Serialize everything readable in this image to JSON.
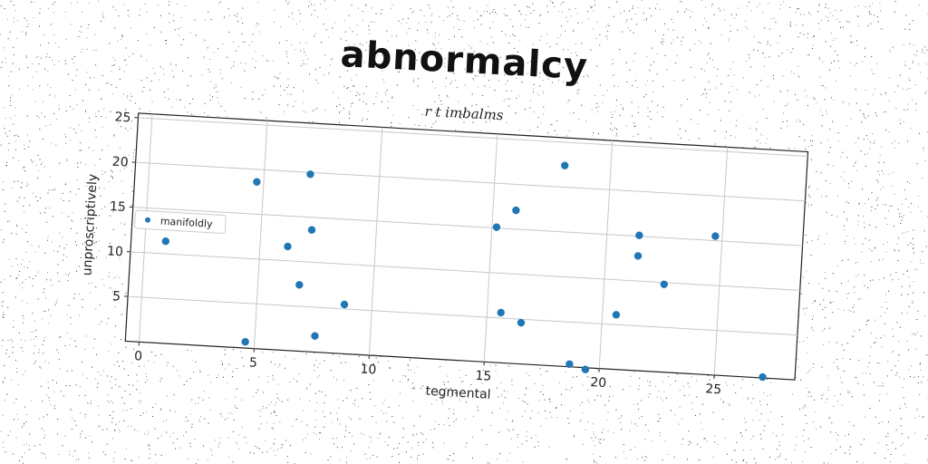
{
  "chart_data": {
    "type": "scatter",
    "title": "abnormalcy",
    "subtitle": "r t imbalms",
    "xlabel": "tegmental",
    "ylabel": "unproscriptively",
    "xlim": [
      -0.6,
      28.5
    ],
    "ylim": [
      0,
      25.5
    ],
    "xticks": [
      0,
      5,
      10,
      15,
      20,
      25
    ],
    "yticks": [
      5,
      10,
      15,
      20,
      25
    ],
    "grid": true,
    "legend_position": "center-left",
    "color": "#1f77b4",
    "series": [
      {
        "name": "manifoldly",
        "x": [
          0.9,
          4.7,
          4.6,
          6.2,
          6.8,
          7.2,
          7.0,
          7.6,
          8.8,
          15.2,
          15.6,
          16.0,
          16.5,
          18.0,
          18.7,
          19.4,
          20.6,
          21.4,
          21.4,
          22.6,
          24.7,
          27.1
        ],
        "y": [
          11.4,
          18.6,
          0.7,
          11.6,
          7.4,
          13.6,
          19.8,
          1.8,
          5.5,
          15.1,
          5.6,
          17.1,
          4.6,
          22.4,
          0.3,
          -0.2,
          6.1,
          15.1,
          12.8,
          9.8,
          15.5,
          0.1
        ]
      }
    ]
  }
}
